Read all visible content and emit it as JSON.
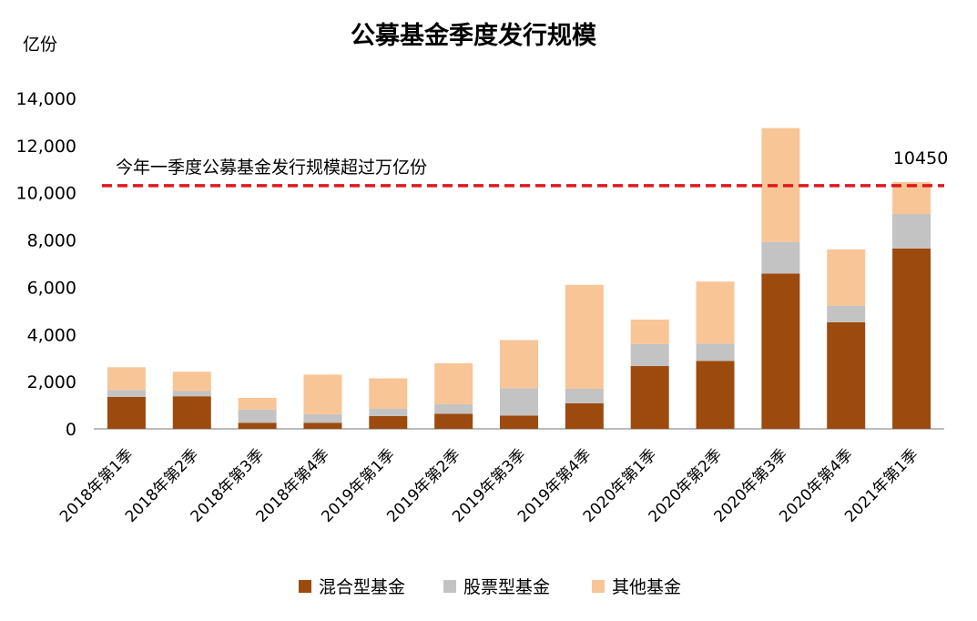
{
  "chart_data": {
    "type": "bar",
    "stacked": true,
    "title": "公募基金季度发行规模",
    "ylabel": "亿份",
    "xlabel": "",
    "ylim": [
      0,
      14000
    ],
    "yticks": [
      "0",
      "2,000",
      "4,000",
      "6,000",
      "8,000",
      "10,000",
      "12,000",
      "14,000"
    ],
    "categories": [
      "2018年第1季",
      "2018年第2季",
      "2018年第3季",
      "2018年第4季",
      "2019年第1季",
      "2019年第2季",
      "2019年第3季",
      "2019年第4季",
      "2020年第1季",
      "2020年第2季",
      "2020年第3季",
      "2020年第4季",
      "2021年第1季"
    ],
    "series": [
      {
        "name": "混合型基金",
        "color": "#9C4A0E",
        "values": [
          1350,
          1380,
          260,
          260,
          540,
          640,
          560,
          1080,
          2660,
          2880,
          6580,
          4520,
          7640
        ]
      },
      {
        "name": "股票型基金",
        "color": "#C3C3C3",
        "values": [
          300,
          220,
          560,
          360,
          310,
          400,
          1160,
          620,
          930,
          730,
          1340,
          700,
          1460
        ]
      },
      {
        "name": "其他基金",
        "color": "#F8C597",
        "values": [
          960,
          820,
          490,
          1680,
          1290,
          1740,
          2040,
          4400,
          1040,
          2630,
          4820,
          2380,
          1350
        ]
      }
    ],
    "reference_line": {
      "value": 10300,
      "label": "今年一季度公募基金发行规模超过万亿份",
      "color": "#E0191E"
    },
    "data_label": {
      "category_index": 12,
      "text": "10450"
    },
    "legend_position": "bottom",
    "grid": false
  }
}
